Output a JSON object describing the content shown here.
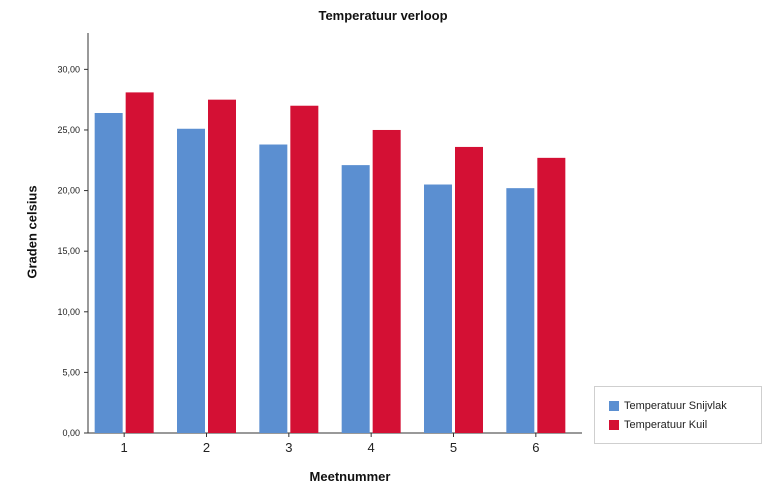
{
  "chart_data": {
    "type": "bar",
    "title": "Temperatuur verloop",
    "xlabel": "Meetnummer",
    "ylabel": "Graden celsius",
    "categories": [
      "1",
      "2",
      "3",
      "4",
      "5",
      "6"
    ],
    "series": [
      {
        "name": "Temperatuur Snijvlak",
        "color": "#5b8fd1",
        "values": [
          26.4,
          25.1,
          23.8,
          22.1,
          20.5,
          20.2
        ]
      },
      {
        "name": "Temperatuur Kuil",
        "color": "#d41034",
        "values": [
          28.1,
          27.5,
          27.0,
          25.0,
          23.6,
          22.7
        ]
      }
    ],
    "yticks": [
      "0,00",
      "5,00",
      "10,00",
      "15,00",
      "20,00",
      "25,00",
      "30,00"
    ],
    "ylim": [
      0,
      33
    ],
    "grid": false,
    "legend_position": "bottom-right"
  }
}
